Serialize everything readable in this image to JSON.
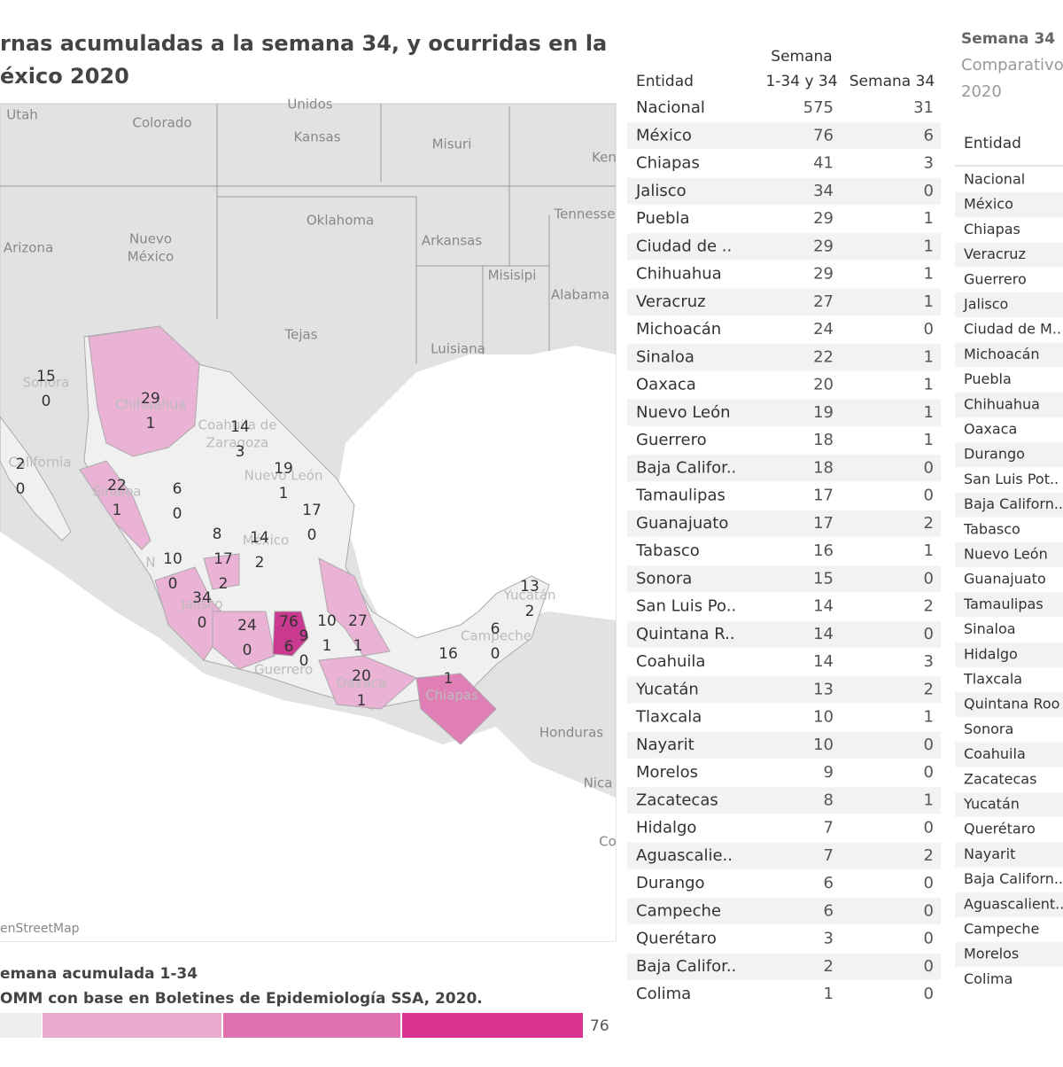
{
  "header": {
    "title_lines": [
      "rnas acumuladas a la semana 34, y ocurridas en la",
      "éxico 2020"
    ]
  },
  "map": {
    "place_labels": [
      "Unidos",
      "Utah",
      "Colorado",
      "Kansas",
      "Misuri",
      "Ken",
      "Oklahoma",
      "Tennesse",
      "Nuevo",
      "México",
      "Arizona",
      "Arkansas",
      "Misisipi",
      "Alabama",
      "Tejas",
      "Luisiana",
      "Honduras",
      "Nica",
      "Co",
      "Sonora",
      "Chihuahua",
      "Coahuila de",
      "Zaragoza",
      "California",
      "Sinaloa",
      "Nuevo León",
      "México",
      "Jalisco",
      "Guerrero",
      "Oaxaca",
      "Chiapas",
      "Campeche",
      "Yucatán",
      "N"
    ],
    "states": [
      {
        "total": 15,
        "week": 0
      },
      {
        "total": 29,
        "week": 1
      },
      {
        "total": 14,
        "week": 3
      },
      {
        "total": 2,
        "week": 0
      },
      {
        "total": 22,
        "week": 1
      },
      {
        "total": 6,
        "week": 0
      },
      {
        "total": 19,
        "week": 1
      },
      {
        "total": 17,
        "week": 0
      },
      {
        "total": 8
      },
      {
        "total": 14,
        "week": 2
      },
      {
        "total": 10,
        "week": 0
      },
      {
        "total": 17,
        "week": 2
      },
      {
        "total": 34,
        "week": 0
      },
      {
        "total": 24,
        "week": 0
      },
      {
        "total": 76,
        "week": 6
      },
      {
        "total": 9,
        "week": 0
      },
      {
        "total": 10,
        "week": 1
      },
      {
        "total": 27,
        "week": 1
      },
      {
        "total": 20,
        "week": 1
      },
      {
        "total": 16,
        "week": 1
      },
      {
        "total": 6,
        "week": 0
      },
      {
        "total": 13,
        "week": 2
      }
    ],
    "attribution": "enStreetMap"
  },
  "legend": {
    "title": "emana acumulada 1-34",
    "source": "OMM con base en Boletines de Epidemiología SSA, 2020.",
    "max_label": "76"
  },
  "table1": {
    "header": {
      "entity": "Entidad",
      "col1_lines": [
        "Semana",
        "1-34 y 34"
      ],
      "col2": "Semana 34"
    },
    "rows": [
      [
        "Nacional",
        "575",
        "31"
      ],
      [
        "México",
        "76",
        "6"
      ],
      [
        "Chiapas",
        "41",
        "3"
      ],
      [
        "Jalisco",
        "34",
        "0"
      ],
      [
        "Puebla",
        "29",
        "1"
      ],
      [
        "Ciudad de ..",
        "29",
        "1"
      ],
      [
        "Chihuahua",
        "29",
        "1"
      ],
      [
        "Veracruz",
        "27",
        "1"
      ],
      [
        "Michoacán",
        "24",
        "0"
      ],
      [
        "Sinaloa",
        "22",
        "1"
      ],
      [
        "Oaxaca",
        "20",
        "1"
      ],
      [
        "Nuevo León",
        "19",
        "1"
      ],
      [
        "Guerrero",
        "18",
        "1"
      ],
      [
        "Baja Califor..",
        "18",
        "0"
      ],
      [
        "Tamaulipas",
        "17",
        "0"
      ],
      [
        "Guanajuato",
        "17",
        "2"
      ],
      [
        "Tabasco",
        "16",
        "1"
      ],
      [
        "Sonora",
        "15",
        "0"
      ],
      [
        "San Luis Po..",
        "14",
        "2"
      ],
      [
        "Quintana R..",
        "14",
        "0"
      ],
      [
        "Coahuila",
        "14",
        "3"
      ],
      [
        "Yucatán",
        "13",
        "2"
      ],
      [
        "Tlaxcala",
        "10",
        "1"
      ],
      [
        "Nayarit",
        "10",
        "0"
      ],
      [
        "Morelos",
        "9",
        "0"
      ],
      [
        "Zacatecas",
        "8",
        "1"
      ],
      [
        "Hidalgo",
        "7",
        "0"
      ],
      [
        "Aguascalie..",
        "7",
        "2"
      ],
      [
        "Durango",
        "6",
        "0"
      ],
      [
        "Campeche",
        "6",
        "0"
      ],
      [
        "Querétaro",
        "3",
        "0"
      ],
      [
        "Baja Califor..",
        "2",
        "0"
      ],
      [
        "Colima",
        "1",
        "0"
      ]
    ]
  },
  "table2": {
    "title": "Semana 34",
    "subtitle_lines": [
      "Comparativo",
      "2020"
    ],
    "header": "Entidad",
    "rows": [
      "Nacional",
      "México",
      "Chiapas",
      "Veracruz",
      "Guerrero",
      "Jalisco",
      "Ciudad de M..",
      "Michoacán",
      "Puebla",
      "Chihuahua",
      "Oaxaca",
      "Durango",
      "San Luis Pot..",
      "Baja Californ..",
      "Tabasco",
      "Nuevo León",
      "Guanajuato",
      "Tamaulipas",
      "Sinaloa",
      "Hidalgo",
      "Tlaxcala",
      "Quintana Roo",
      "Sonora",
      "Coahuila",
      "Zacatecas",
      "Yucatán",
      "Querétaro",
      "Nayarit",
      "Baja Californ..",
      "Aguascalient..",
      "Campeche",
      "Morelos",
      "Colima"
    ]
  }
}
